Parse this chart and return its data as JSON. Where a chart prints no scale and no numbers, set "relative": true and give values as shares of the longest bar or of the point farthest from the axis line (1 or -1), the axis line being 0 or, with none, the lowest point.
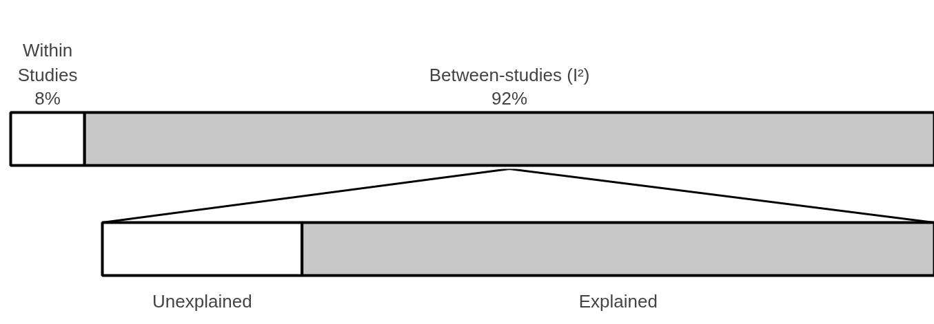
{
  "chart_data": [
    {
      "type": "bar",
      "orientation": "horizontal",
      "stacked": true,
      "categories": [
        null
      ],
      "tick_labels": false,
      "series": [
        {
          "name": "Within\nStudies",
          "color": "#ffffff",
          "values": [
            8
          ],
          "value_labels": [
            "8%"
          ]
        },
        {
          "name": "Between-studies (I²)",
          "color": "#c8c8c8",
          "values": [
            92
          ],
          "value_labels": [
            "92%"
          ]
        }
      ]
    },
    {
      "type": "bar",
      "orientation": "horizontal",
      "stacked": true,
      "relative": true,
      "categories": [
        null
      ],
      "tick_labels": false,
      "series": [
        {
          "name": "Unexplained",
          "color": "#ffffff",
          "values": [
            0.24
          ]
        },
        {
          "name": "Explained",
          "color": "#c8c8c8",
          "values": [
            0.76
          ]
        }
      ]
    }
  ]
}
